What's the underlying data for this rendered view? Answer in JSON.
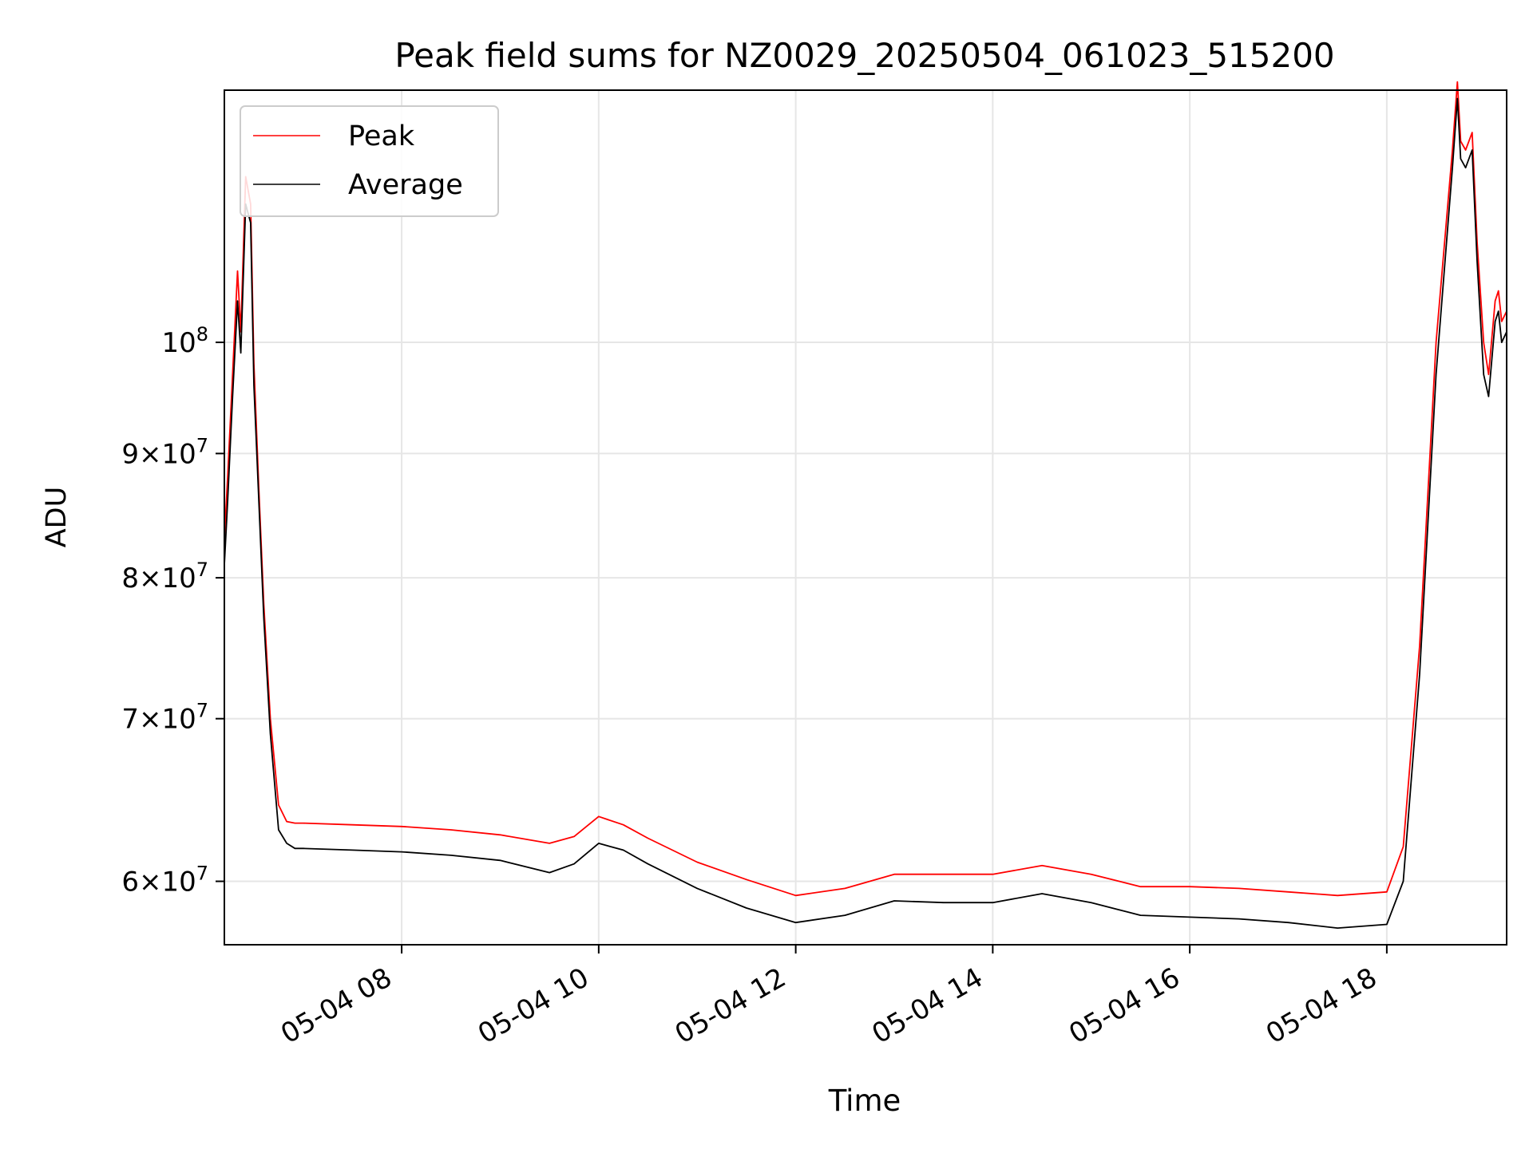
{
  "chart_data": {
    "type": "line",
    "title": "Peak field sums for NZ0029_20250504_061023_515200",
    "xlabel": "Time",
    "ylabel": "ADU",
    "yscale": "log",
    "xlim": [
      "05-04 06:12",
      "05-04 19:13"
    ],
    "ylim": [
      56500000,
      127000000
    ],
    "grid": true,
    "legend_position": "top-left",
    "xtick_labels": [
      "05-04 08",
      "05-04 10",
      "05-04 12",
      "05-04 14",
      "05-04 16",
      "05-04 18"
    ],
    "xtick_values": [
      "05-04 08:00",
      "05-04 10:00",
      "05-04 12:00",
      "05-04 14:00",
      "05-04 16:00",
      "05-04 18:00"
    ],
    "ytick_values": [
      60000000,
      70000000,
      80000000,
      90000000,
      100000000
    ],
    "ytick_labels": [
      {
        "mant": "6",
        "exp": "7"
      },
      {
        "mant": "7",
        "exp": "7"
      },
      {
        "mant": "8",
        "exp": "7"
      },
      {
        "mant": "9",
        "exp": "7"
      },
      {
        "mant": "",
        "exp": "8"
      }
    ],
    "ytick_base": "10",
    "ytick_times": "×",
    "series": [
      {
        "name": "Peak",
        "color": "#ff0000",
        "x": [
          "05-04 06:12",
          "05-04 06:14",
          "05-04 06:17",
          "05-04 06:20",
          "05-04 06:22",
          "05-04 06:25",
          "05-04 06:28",
          "05-04 06:30",
          "05-04 06:33",
          "05-04 06:36",
          "05-04 06:40",
          "05-04 06:45",
          "05-04 06:50",
          "05-04 06:55",
          "05-04 07:00",
          "05-04 07:30",
          "05-04 08:00",
          "05-04 08:30",
          "05-04 09:00",
          "05-04 09:30",
          "05-04 09:45",
          "05-04 10:00",
          "05-04 10:15",
          "05-04 10:30",
          "05-04 11:00",
          "05-04 11:30",
          "05-04 12:00",
          "05-04 12:30",
          "05-04 13:00",
          "05-04 13:30",
          "05-04 14:00",
          "05-04 14:30",
          "05-04 15:00",
          "05-04 15:30",
          "05-04 16:00",
          "05-04 16:30",
          "05-04 17:00",
          "05-04 17:30",
          "05-04 18:00",
          "05-04 18:10",
          "05-04 18:20",
          "05-04 18:30",
          "05-04 18:40",
          "05-04 18:43",
          "05-04 18:45",
          "05-04 18:48",
          "05-04 18:52",
          "05-04 18:55",
          "05-04 18:59",
          "05-04 19:02",
          "05-04 19:06",
          "05-04 19:08",
          "05-04 19:10",
          "05-04 19:13"
        ],
        "y": [
          83000000,
          88000000,
          97000000,
          107000000,
          101000000,
          117000000,
          114000000,
          98000000,
          87000000,
          78000000,
          70000000,
          64500000,
          63500000,
          63400000,
          63400000,
          63300000,
          63200000,
          63000000,
          62700000,
          62200000,
          62600000,
          63800000,
          63300000,
          62500000,
          61100000,
          60100000,
          59200000,
          59600000,
          60400000,
          60400000,
          60400000,
          60900000,
          60400000,
          59700000,
          59700000,
          59600000,
          59400000,
          59200000,
          59400000,
          62000000,
          75000000,
          100000000,
          120000000,
          128000000,
          121000000,
          120000000,
          122000000,
          110000000,
          100000000,
          97000000,
          104000000,
          105000000,
          102000000,
          103000000
        ]
      },
      {
        "name": "Average",
        "color": "#000000",
        "x": [
          "05-04 06:12",
          "05-04 06:14",
          "05-04 06:17",
          "05-04 06:20",
          "05-04 06:22",
          "05-04 06:25",
          "05-04 06:28",
          "05-04 06:30",
          "05-04 06:33",
          "05-04 06:36",
          "05-04 06:40",
          "05-04 06:45",
          "05-04 06:50",
          "05-04 06:55",
          "05-04 07:00",
          "05-04 07:30",
          "05-04 08:00",
          "05-04 08:30",
          "05-04 09:00",
          "05-04 09:30",
          "05-04 09:45",
          "05-04 10:00",
          "05-04 10:15",
          "05-04 10:30",
          "05-04 11:00",
          "05-04 11:30",
          "05-04 12:00",
          "05-04 12:30",
          "05-04 13:00",
          "05-04 13:30",
          "05-04 14:00",
          "05-04 14:30",
          "05-04 15:00",
          "05-04 15:30",
          "05-04 16:00",
          "05-04 16:30",
          "05-04 17:00",
          "05-04 17:30",
          "05-04 18:00",
          "05-04 18:10",
          "05-04 18:20",
          "05-04 18:30",
          "05-04 18:40",
          "05-04 18:43",
          "05-04 18:45",
          "05-04 18:48",
          "05-04 18:52",
          "05-04 18:55",
          "05-04 18:59",
          "05-04 19:02",
          "05-04 19:06",
          "05-04 19:08",
          "05-04 19:10",
          "05-04 19:13"
        ],
        "y": [
          81000000,
          86000000,
          95000000,
          104000000,
          99000000,
          114000000,
          112000000,
          96000000,
          86000000,
          77000000,
          69000000,
          63000000,
          62200000,
          61900000,
          61900000,
          61800000,
          61700000,
          61500000,
          61200000,
          60500000,
          61000000,
          62200000,
          61800000,
          61000000,
          59600000,
          58500000,
          57700000,
          58100000,
          58900000,
          58800000,
          58800000,
          59300000,
          58800000,
          58100000,
          58000000,
          57900000,
          57700000,
          57400000,
          57600000,
          60000000,
          73000000,
          97000000,
          118000000,
          126000000,
          119000000,
          118000000,
          120000000,
          108000000,
          97000000,
          95000000,
          102000000,
          103000000,
          100000000,
          101000000
        ]
      }
    ]
  }
}
